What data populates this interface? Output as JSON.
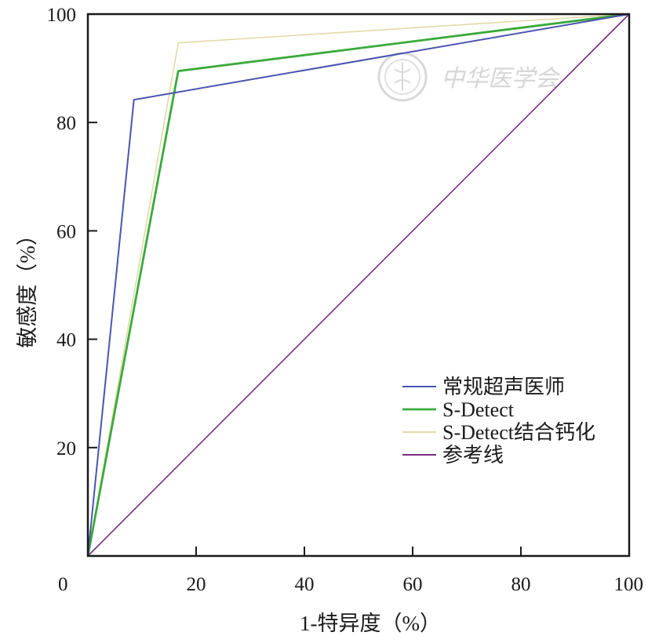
{
  "chart_data": {
    "type": "line",
    "xlabel": "1-特异度（%）",
    "ylabel": "敏感度（%）",
    "xlim": [
      0,
      100
    ],
    "ylim": [
      0,
      100
    ],
    "x_ticks": [
      "0",
      "20",
      "40",
      "60",
      "80",
      "100"
    ],
    "y_ticks": [
      "20",
      "40",
      "60",
      "80",
      "100"
    ],
    "x_tick_values": [
      0,
      20,
      40,
      60,
      80,
      100
    ],
    "y_tick_values": [
      20,
      40,
      60,
      80,
      100
    ],
    "grid": false,
    "legend_position": "bottom-right",
    "series": [
      {
        "name": "常规超声医师",
        "color": "#4a54b0",
        "points": [
          [
            0,
            0
          ],
          [
            8.5,
            84.2
          ],
          [
            100,
            100
          ]
        ]
      },
      {
        "name": "S-Detect",
        "color": "#3aaa3a",
        "points": [
          [
            0,
            0
          ],
          [
            16.7,
            89.5
          ],
          [
            100,
            100
          ]
        ]
      },
      {
        "name": "S-Detect结合钙化",
        "color": "#e3d9a8",
        "points": [
          [
            0,
            0
          ],
          [
            16.7,
            94.7
          ],
          [
            100,
            100
          ]
        ]
      },
      {
        "name": "参考线",
        "color": "#7a2c82",
        "points": [
          [
            0,
            0
          ],
          [
            100,
            100
          ]
        ]
      }
    ]
  },
  "watermark": {
    "text": "中华医学会"
  }
}
